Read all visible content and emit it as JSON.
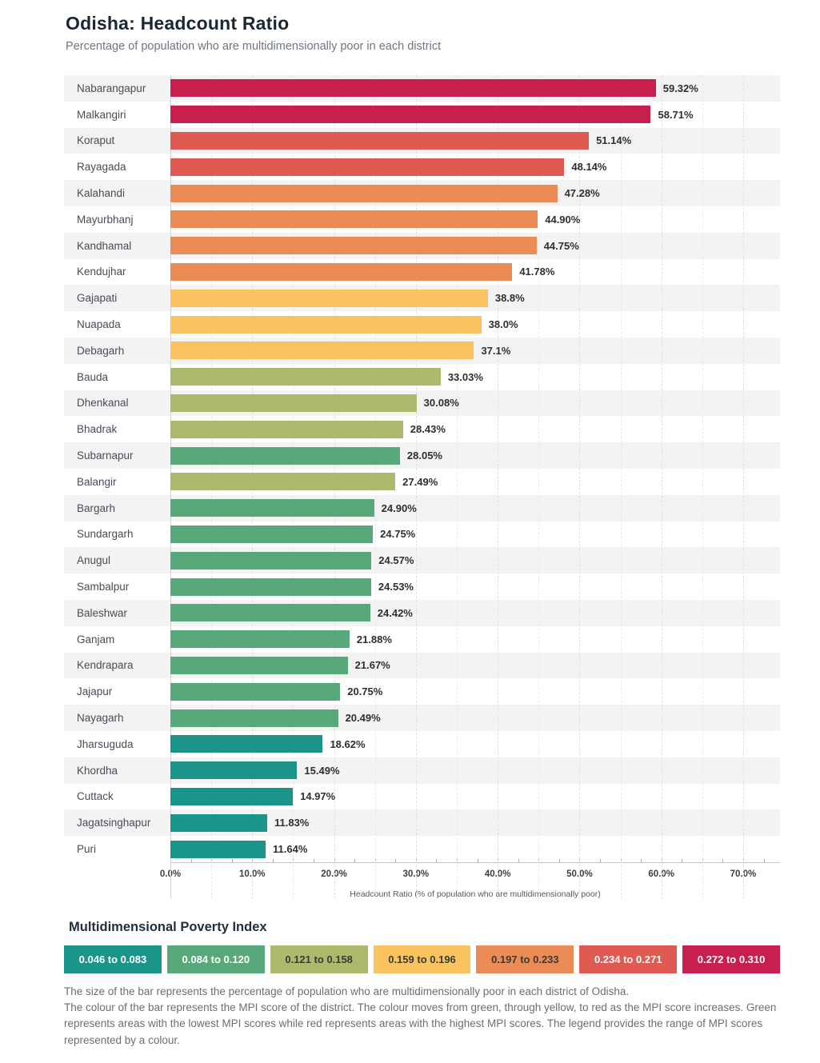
{
  "header": {
    "title": "Odisha: Headcount Ratio",
    "subtitle": "Percentage of population who are multidimensionally poor in each district"
  },
  "palette": {
    "teal": "#1b9589",
    "green": "#58a87c",
    "olive": "#adba6e",
    "yellow": "#f9c45f",
    "orange": "#eb8c57",
    "salmon": "#df5a52",
    "crimson": "#c8204e"
  },
  "chart_data": {
    "type": "bar",
    "orientation": "horizontal",
    "title": "Odisha: Headcount Ratio",
    "subtitle": "Percentage of population who are multidimensionally poor in each district",
    "categories": [
      "Nabarangapur",
      "Malkangiri",
      "Koraput",
      "Rayagada",
      "Kalahandi",
      "Mayurbhanj",
      "Kandhamal",
      "Kendujhar",
      "Gajapati",
      "Nuapada",
      "Debagarh",
      "Bauda",
      "Dhenkanal",
      "Bhadrak",
      "Subarnapur",
      "Balangir",
      "Bargarh",
      "Sundargarh",
      "Anugul",
      "Sambalpur",
      "Baleshwar",
      "Ganjam",
      "Kendrapara",
      "Jajapur",
      "Nayagarh",
      "Jharsuguda",
      "Khordha",
      "Cuttack",
      "Jagatsinghapur",
      "Puri"
    ],
    "values": [
      59.32,
      58.71,
      51.14,
      48.14,
      47.28,
      44.9,
      44.75,
      41.78,
      38.8,
      38.0,
      37.1,
      33.03,
      30.08,
      28.43,
      28.05,
      27.49,
      24.9,
      24.75,
      24.57,
      24.53,
      24.42,
      21.88,
      21.67,
      20.75,
      20.49,
      18.62,
      15.49,
      14.97,
      11.83,
      11.64
    ],
    "value_labels": [
      "59.32%",
      "58.71%",
      "51.14%",
      "48.14%",
      "47.28%",
      "44.90%",
      "44.75%",
      "41.78%",
      "38.8%",
      "38.0%",
      "37.1%",
      "33.03%",
      "30.08%",
      "28.43%",
      "28.05%",
      "27.49%",
      "24.90%",
      "24.75%",
      "24.57%",
      "24.53%",
      "24.42%",
      "21.88%",
      "21.67%",
      "20.75%",
      "20.49%",
      "18.62%",
      "15.49%",
      "14.97%",
      "11.83%",
      "11.64%"
    ],
    "bar_color_keys": [
      "crimson",
      "crimson",
      "salmon",
      "salmon",
      "orange",
      "orange",
      "orange",
      "orange",
      "yellow",
      "yellow",
      "yellow",
      "olive",
      "olive",
      "olive",
      "green",
      "olive",
      "green",
      "green",
      "green",
      "green",
      "green",
      "green",
      "green",
      "green",
      "green",
      "teal",
      "teal",
      "teal",
      "teal",
      "teal"
    ],
    "xlabel": "Headcount Ratio (% of population who are multidimensionally poor)",
    "xlim": [
      0,
      74.5
    ],
    "x_ticks": [
      "0.0%",
      "10.0%",
      "20.0%",
      "30.0%",
      "40.0%",
      "50.0%",
      "60.0%",
      "70.0%"
    ],
    "x_tick_values": [
      0,
      10,
      20,
      30,
      40,
      50,
      60,
      70
    ],
    "minor_tick_step": 2.5,
    "grid": "dashed vertical lines every 5%",
    "row_stripes": true,
    "legend_position": "bottom"
  },
  "legend": {
    "title": "Multidimensional Poverty Index",
    "items": [
      {
        "label": "0.046 to 0.083",
        "color_key": "teal",
        "text": "light"
      },
      {
        "label": "0.084 to 0.120",
        "color_key": "green",
        "text": "light"
      },
      {
        "label": "0.121 to 0.158",
        "color_key": "olive",
        "text": "dark"
      },
      {
        "label": "0.159 to 0.196",
        "color_key": "yellow",
        "text": "dark"
      },
      {
        "label": "0.197 to 0.233",
        "color_key": "orange",
        "text": "dark"
      },
      {
        "label": "0.234 to 0.271",
        "color_key": "salmon",
        "text": "light"
      },
      {
        "label": "0.272 to 0.310",
        "color_key": "crimson",
        "text": "light"
      }
    ]
  },
  "footer": {
    "para1": "The size of the bar represents the percentage of population who are multidimensionally poor in each district of Odisha.",
    "para2": "The colour of the bar represents the MPI score of the district. The colour moves from green, through yellow, to red as the MPI score increases. Green represents areas with the lowest MPI scores while red represents areas with the highest MPI scores. The legend provides the range of MPI scores represented by a colour."
  }
}
